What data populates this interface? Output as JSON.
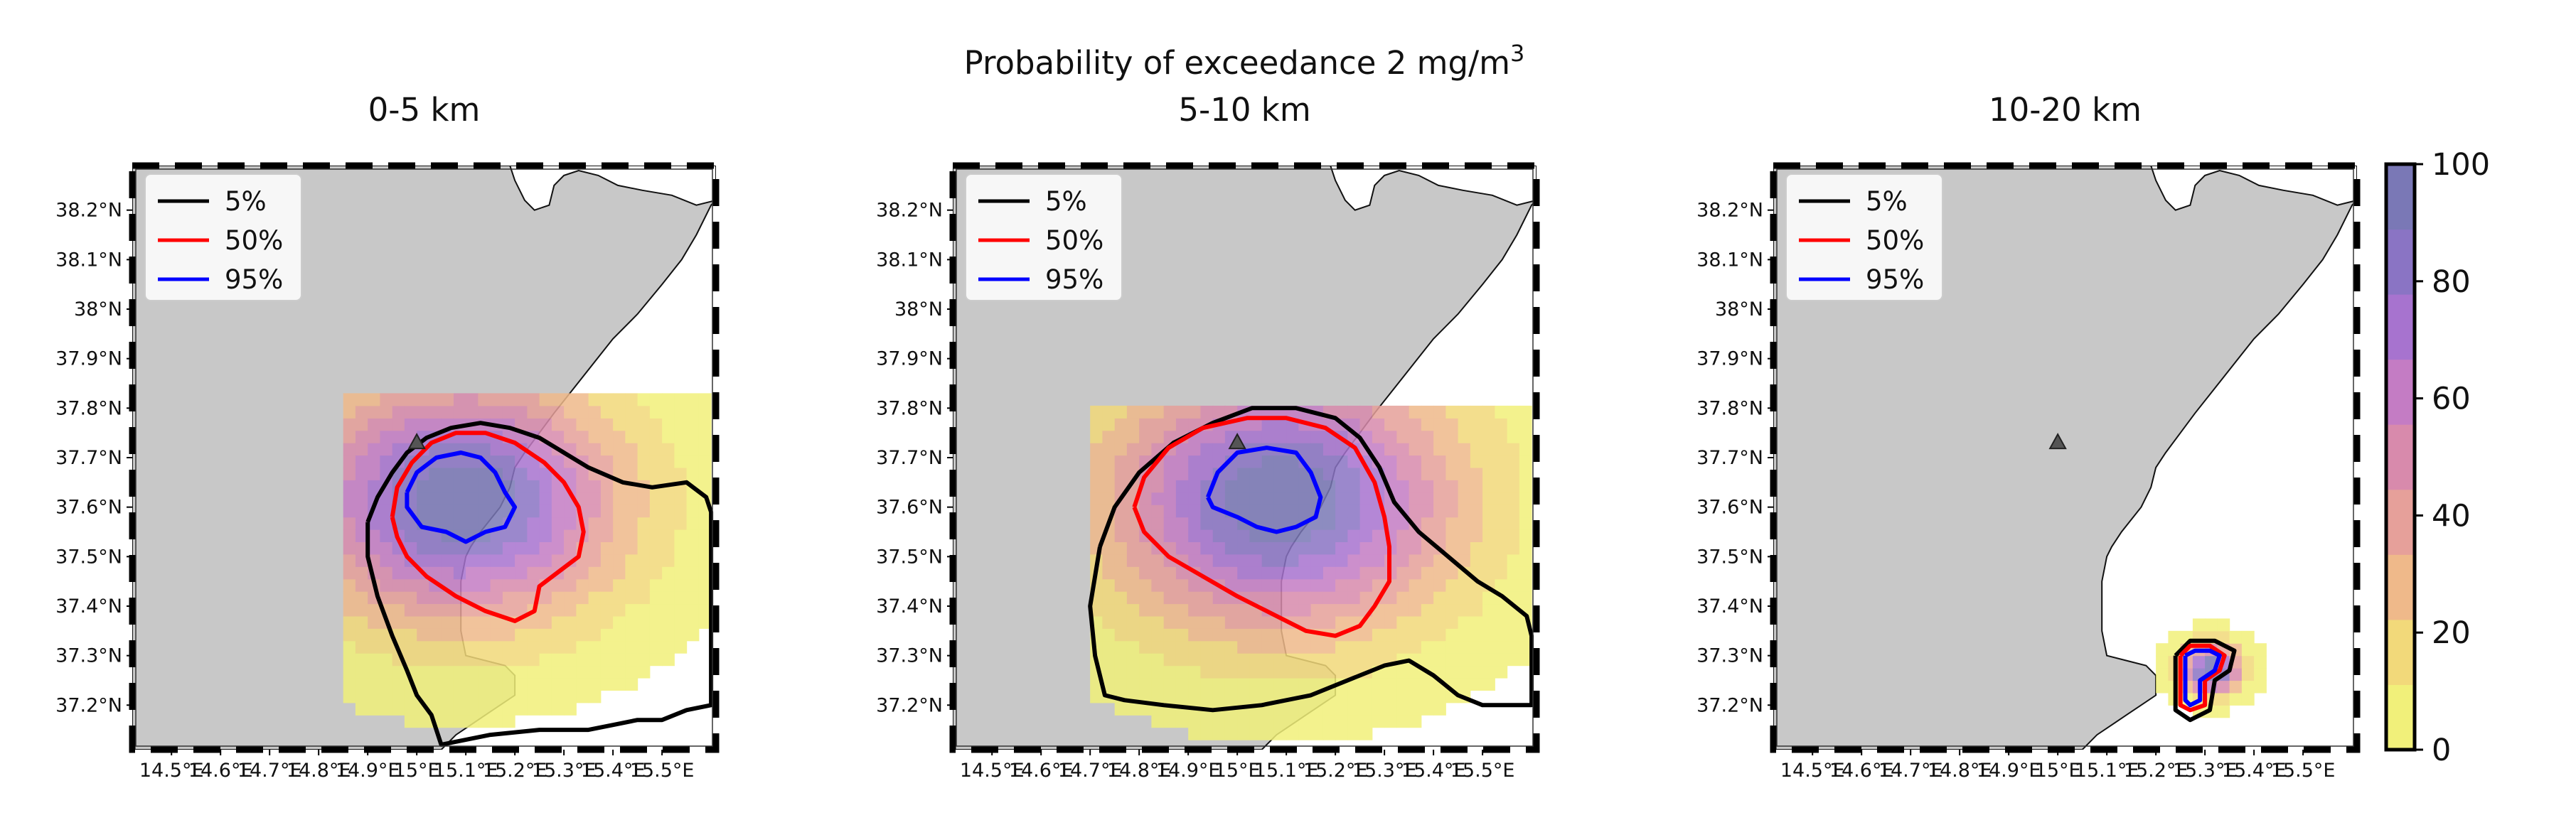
{
  "figure": {
    "title_main": "Probability of exceedance 2 mg/m",
    "title_sup": "3"
  },
  "colors": {
    "land": "#c8c8c8",
    "coast": "#111111",
    "contour_5": "#000000",
    "contour_50": "#ff0000",
    "contour_95": "#0000ff",
    "colormap": [
      "#f1f07a",
      "#f2d97a",
      "#efb98a",
      "#e6a09a",
      "#d88aac",
      "#c47cc4",
      "#a773cf",
      "#8a74c4",
      "#7a78b6"
    ]
  },
  "chart_data": [
    {
      "type": "heatmap",
      "title": "0-5 km",
      "xlabel": "",
      "ylabel": "",
      "x_ticks": [
        "14.5°E",
        "14.6°E",
        "14.7°E",
        "14.8°E",
        "14.9°E",
        "15°E",
        "15.1°E",
        "15.2°E",
        "15.3°E",
        "15.4°E",
        "15.5°E"
      ],
      "y_ticks": [
        "38.2°N",
        "38.1°N",
        "38°N",
        "37.9°N",
        "37.8°N",
        "37.7°N",
        "37.6°N",
        "37.5°N",
        "37.4°N",
        "37.3°N",
        "37.2°N"
      ],
      "xlim": [
        14.42,
        15.61
      ],
      "ylim": [
        37.11,
        38.29
      ],
      "vent": {
        "lon": 15.0,
        "lat": 37.73
      },
      "field": {
        "center": [
          15.08,
          37.6
        ],
        "peak": 100,
        "spread_lon": 0.32,
        "spread_lat": 0.24,
        "extent_lon": [
          14.85,
          15.6
        ],
        "extent_lat": [
          37.13,
          37.82
        ]
      },
      "legend": {
        "position": "upper-left",
        "entries": [
          "5%",
          "50%",
          "95%"
        ]
      },
      "contours": {
        "5%": [
          [
            14.9,
            37.57
          ],
          [
            14.92,
            37.62
          ],
          [
            14.95,
            37.67
          ],
          [
            14.98,
            37.71
          ],
          [
            15.02,
            37.74
          ],
          [
            15.07,
            37.76
          ],
          [
            15.13,
            37.77
          ],
          [
            15.19,
            37.76
          ],
          [
            15.25,
            37.74
          ],
          [
            15.3,
            37.71
          ],
          [
            15.35,
            37.68
          ],
          [
            15.42,
            37.65
          ],
          [
            15.48,
            37.64
          ],
          [
            15.55,
            37.65
          ],
          [
            15.59,
            37.62
          ],
          [
            15.6,
            37.59
          ],
          [
            15.6,
            37.2
          ],
          [
            15.55,
            37.19
          ],
          [
            15.5,
            37.17
          ],
          [
            15.45,
            37.17
          ],
          [
            15.4,
            37.16
          ],
          [
            15.35,
            37.15
          ],
          [
            15.25,
            37.15
          ],
          [
            15.15,
            37.14
          ],
          [
            15.05,
            37.12
          ],
          [
            15.03,
            37.18
          ],
          [
            15.0,
            37.22
          ],
          [
            14.98,
            37.27
          ],
          [
            14.95,
            37.34
          ],
          [
            14.92,
            37.42
          ],
          [
            14.9,
            37.5
          ],
          [
            14.9,
            37.57
          ]
        ],
        "50%": [
          [
            14.95,
            37.58
          ],
          [
            14.96,
            37.64
          ],
          [
            14.99,
            37.69
          ],
          [
            15.03,
            37.73
          ],
          [
            15.08,
            37.75
          ],
          [
            15.14,
            37.75
          ],
          [
            15.2,
            37.73
          ],
          [
            15.26,
            37.69
          ],
          [
            15.3,
            37.65
          ],
          [
            15.33,
            37.6
          ],
          [
            15.34,
            37.55
          ],
          [
            15.33,
            37.5
          ],
          [
            15.29,
            37.47
          ],
          [
            15.25,
            37.44
          ],
          [
            15.24,
            37.39
          ],
          [
            15.2,
            37.37
          ],
          [
            15.14,
            37.39
          ],
          [
            15.08,
            37.42
          ],
          [
            15.02,
            37.46
          ],
          [
            14.98,
            37.5
          ],
          [
            14.96,
            37.54
          ],
          [
            14.95,
            37.58
          ]
        ],
        "95%": [
          [
            14.98,
            37.63
          ],
          [
            15.0,
            37.67
          ],
          [
            15.04,
            37.7
          ],
          [
            15.09,
            37.71
          ],
          [
            15.13,
            37.7
          ],
          [
            15.16,
            37.67
          ],
          [
            15.18,
            37.63
          ],
          [
            15.2,
            37.6
          ],
          [
            15.18,
            37.56
          ],
          [
            15.14,
            37.55
          ],
          [
            15.1,
            37.53
          ],
          [
            15.06,
            37.55
          ],
          [
            15.01,
            37.56
          ],
          [
            14.98,
            37.6
          ],
          [
            14.98,
            37.63
          ]
        ]
      }
    },
    {
      "type": "heatmap",
      "title": "5-10 km",
      "xlabel": "",
      "ylabel": "",
      "x_ticks": [
        "14.5°E",
        "14.6°E",
        "14.7°E",
        "14.8°E",
        "14.9°E",
        "15°E",
        "15.1°E",
        "15.2°E",
        "15.3°E",
        "15.4°E",
        "15.5°E"
      ],
      "y_ticks": [
        "38.2°N",
        "38.1°N",
        "38°N",
        "37.9°N",
        "37.8°N",
        "37.7°N",
        "37.6°N",
        "37.5°N",
        "37.4°N",
        "37.3°N",
        "37.2°N"
      ],
      "xlim": [
        14.42,
        15.61
      ],
      "ylim": [
        37.11,
        38.29
      ],
      "vent": {
        "lon": 15.0,
        "lat": 37.73
      },
      "field": {
        "center": [
          15.08,
          37.6
        ],
        "peak": 100,
        "spread_lon": 0.35,
        "spread_lat": 0.26,
        "extent_lon": [
          14.7,
          15.6
        ],
        "extent_lat": [
          37.13,
          37.8
        ]
      },
      "legend": {
        "position": "upper-left",
        "entries": [
          "5%",
          "50%",
          "95%"
        ]
      },
      "contours": {
        "5%": [
          [
            14.72,
            37.52
          ],
          [
            14.75,
            37.6
          ],
          [
            14.8,
            37.67
          ],
          [
            14.87,
            37.73
          ],
          [
            14.95,
            37.77
          ],
          [
            15.03,
            37.8
          ],
          [
            15.12,
            37.8
          ],
          [
            15.2,
            37.78
          ],
          [
            15.25,
            37.74
          ],
          [
            15.29,
            37.68
          ],
          [
            15.32,
            37.61
          ],
          [
            15.37,
            37.55
          ],
          [
            15.43,
            37.5
          ],
          [
            15.49,
            37.45
          ],
          [
            15.54,
            37.42
          ],
          [
            15.59,
            37.38
          ],
          [
            15.6,
            37.34
          ],
          [
            15.6,
            37.2
          ],
          [
            15.55,
            37.2
          ],
          [
            15.5,
            37.2
          ],
          [
            15.45,
            37.22
          ],
          [
            15.4,
            37.26
          ],
          [
            15.35,
            37.29
          ],
          [
            15.3,
            37.28
          ],
          [
            15.25,
            37.26
          ],
          [
            15.15,
            37.22
          ],
          [
            15.05,
            37.2
          ],
          [
            14.95,
            37.19
          ],
          [
            14.85,
            37.2
          ],
          [
            14.77,
            37.21
          ],
          [
            14.73,
            37.22
          ],
          [
            14.71,
            37.3
          ],
          [
            14.7,
            37.4
          ],
          [
            14.72,
            37.52
          ]
        ],
        "50%": [
          [
            14.79,
            37.6
          ],
          [
            14.81,
            37.66
          ],
          [
            14.86,
            37.72
          ],
          [
            14.93,
            37.76
          ],
          [
            15.02,
            37.78
          ],
          [
            15.1,
            37.78
          ],
          [
            15.18,
            37.76
          ],
          [
            15.24,
            37.72
          ],
          [
            15.28,
            37.65
          ],
          [
            15.3,
            37.58
          ],
          [
            15.31,
            37.52
          ],
          [
            15.31,
            37.45
          ],
          [
            15.28,
            37.4
          ],
          [
            15.25,
            37.36
          ],
          [
            15.2,
            37.34
          ],
          [
            15.14,
            37.35
          ],
          [
            15.08,
            37.38
          ],
          [
            15.0,
            37.42
          ],
          [
            14.93,
            37.46
          ],
          [
            14.86,
            37.5
          ],
          [
            14.81,
            37.55
          ],
          [
            14.79,
            37.6
          ]
        ],
        "95%": [
          [
            14.94,
            37.62
          ],
          [
            14.96,
            37.67
          ],
          [
            15.0,
            37.71
          ],
          [
            15.06,
            37.72
          ],
          [
            15.12,
            37.71
          ],
          [
            15.15,
            37.67
          ],
          [
            15.17,
            37.62
          ],
          [
            15.16,
            37.58
          ],
          [
            15.12,
            37.56
          ],
          [
            15.08,
            37.55
          ],
          [
            15.04,
            37.56
          ],
          [
            15.0,
            37.58
          ],
          [
            14.95,
            37.6
          ],
          [
            14.94,
            37.62
          ]
        ]
      }
    },
    {
      "type": "heatmap",
      "title": "10-20 km",
      "xlabel": "",
      "ylabel": "",
      "x_ticks": [
        "14.5°E",
        "14.6°E",
        "14.7°E",
        "14.8°E",
        "14.9°E",
        "15°E",
        "15.1°E",
        "15.2°E",
        "15.3°E",
        "15.4°E",
        "15.5°E"
      ],
      "y_ticks": [
        "38.2°N",
        "38.1°N",
        "38°N",
        "37.9°N",
        "37.8°N",
        "37.7°N",
        "37.6°N",
        "37.5°N",
        "37.4°N",
        "37.3°N",
        "37.2°N"
      ],
      "xlim": [
        14.42,
        15.61
      ],
      "ylim": [
        37.11,
        38.29
      ],
      "vent": {
        "lon": 15.0,
        "lat": 37.73
      },
      "field": {
        "center": [
          15.3,
          37.26
        ],
        "peak": 100,
        "spread_lon": 0.06,
        "spread_lat": 0.05,
        "extent_lon": [
          15.0,
          15.45
        ],
        "extent_lat": [
          37.15,
          37.55
        ]
      },
      "legend": {
        "position": "upper-left",
        "entries": [
          "5%",
          "50%",
          "95%"
        ]
      },
      "contours": {
        "5%": [
          [
            15.24,
            37.3
          ],
          [
            15.27,
            37.33
          ],
          [
            15.32,
            37.33
          ],
          [
            15.36,
            37.31
          ],
          [
            15.35,
            37.27
          ],
          [
            15.32,
            37.25
          ],
          [
            15.31,
            37.19
          ],
          [
            15.27,
            37.17
          ],
          [
            15.24,
            37.19
          ],
          [
            15.24,
            37.25
          ],
          [
            15.24,
            37.3
          ]
        ],
        "50%": [
          [
            15.25,
            37.3
          ],
          [
            15.27,
            37.32
          ],
          [
            15.31,
            37.32
          ],
          [
            15.34,
            37.3
          ],
          [
            15.33,
            37.27
          ],
          [
            15.3,
            37.25
          ],
          [
            15.3,
            37.2
          ],
          [
            15.27,
            37.19
          ],
          [
            15.25,
            37.2
          ],
          [
            15.25,
            37.26
          ],
          [
            15.25,
            37.3
          ]
        ],
        "95%": [
          [
            15.26,
            37.3
          ],
          [
            15.28,
            37.31
          ],
          [
            15.31,
            37.31
          ],
          [
            15.33,
            37.3
          ],
          [
            15.32,
            37.27
          ],
          [
            15.29,
            37.25
          ],
          [
            15.29,
            37.21
          ],
          [
            15.27,
            37.2
          ],
          [
            15.26,
            37.21
          ],
          [
            15.26,
            37.26
          ],
          [
            15.26,
            37.3
          ]
        ]
      }
    }
  ],
  "colorbar": {
    "ticks": [
      "100",
      "80",
      "60",
      "40",
      "20",
      "0"
    ],
    "tick_values": [
      100,
      80,
      60,
      40,
      20,
      0
    ],
    "range": [
      0,
      100
    ]
  }
}
